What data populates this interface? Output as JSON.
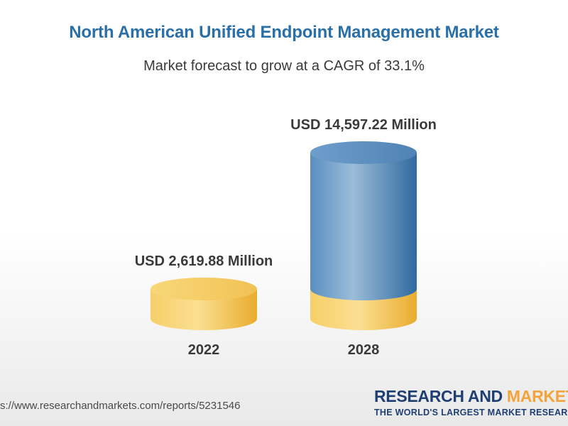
{
  "chart_data": {
    "type": "bar",
    "title": "North American Unified Endpoint Management Market",
    "subtitle": "Market forecast to grow at a CAGR of 33.1%",
    "categories": [
      "2022",
      "2028"
    ],
    "values": [
      2619.88,
      14597.22
    ],
    "data_labels": [
      "USD 2,619.88 Million",
      "USD 14,597.22 Million"
    ],
    "unit": "USD Million",
    "cagr_percent": 33.1,
    "colors": {
      "base": "#f3c14e",
      "growth": "#4f88bb",
      "title": "#2a6fa8"
    }
  },
  "footer": {
    "source_url": "s://www.researchandmarkets.com/reports/5231546",
    "brand_name_part1": "RESEARCH AND",
    "brand_name_part2": " MARKETS",
    "brand_tagline": "THE WORLD'S LARGEST MARKET RESEARCH STORE"
  }
}
